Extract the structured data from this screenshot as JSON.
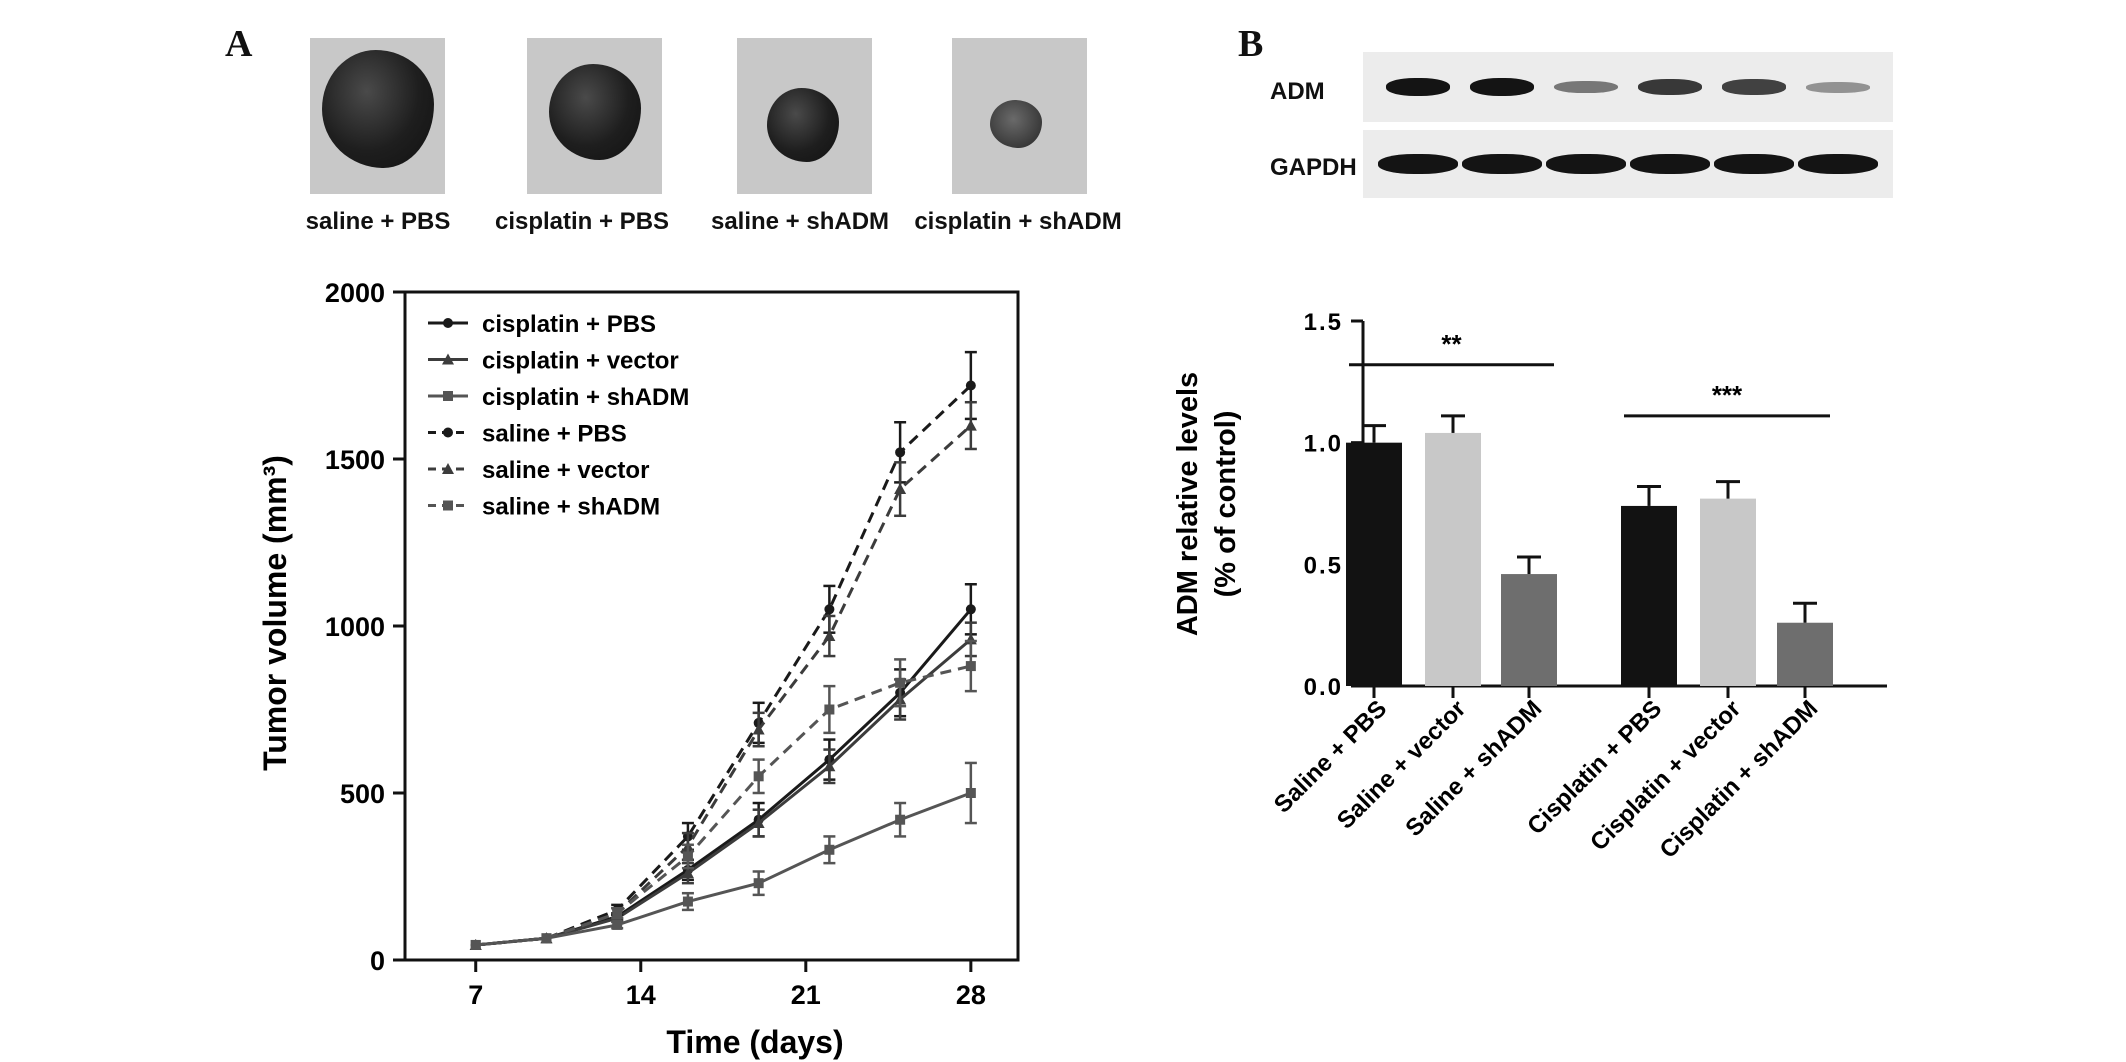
{
  "panels": {
    "a": "A",
    "b": "B"
  },
  "tumor_labels": [
    "saline + PBS",
    "cisplatin + PBS",
    "saline + shADM",
    "cisplatin + shADM"
  ],
  "blot": {
    "rows": [
      "ADM",
      "GAPDH"
    ],
    "adm_band_intensity": [
      1.0,
      1.0,
      0.45,
      0.8,
      0.75,
      0.3
    ]
  },
  "chart_data": [
    {
      "type": "line",
      "title": "",
      "xlabel": "Time (days)",
      "ylabel": "Tumor volume (mm³)",
      "xlim": [
        4,
        30
      ],
      "ylim": [
        0,
        2000
      ],
      "xticks": [
        7,
        14,
        21,
        28
      ],
      "yticks": [
        0,
        500,
        1000,
        1500,
        2000
      ],
      "legend_position": "top-left",
      "x": [
        7,
        10,
        13,
        16,
        19,
        22,
        25,
        28
      ],
      "series": [
        {
          "name": "cisplatin + PBS",
          "style": "solid",
          "marker": "circle",
          "color": "#1a1a1a",
          "values": [
            45,
            65,
            130,
            270,
            420,
            600,
            800,
            1050
          ],
          "errors": [
            0,
            0,
            10,
            30,
            50,
            60,
            70,
            75
          ]
        },
        {
          "name": "cisplatin + vector",
          "style": "solid",
          "marker": "triangle",
          "color": "#3c3c3c",
          "values": [
            45,
            65,
            125,
            260,
            410,
            580,
            780,
            960
          ],
          "errors": [
            0,
            0,
            10,
            30,
            40,
            50,
            60,
            50
          ]
        },
        {
          "name": "cisplatin + shADM",
          "style": "solid",
          "marker": "square",
          "color": "#555555",
          "values": [
            45,
            65,
            105,
            175,
            230,
            330,
            420,
            500
          ],
          "errors": [
            0,
            0,
            10,
            25,
            35,
            40,
            50,
            90
          ]
        },
        {
          "name": "saline + PBS",
          "style": "dashed",
          "marker": "circle",
          "color": "#1a1a1a",
          "values": [
            45,
            65,
            150,
            370,
            710,
            1050,
            1520,
            1720
          ],
          "errors": [
            0,
            0,
            15,
            40,
            60,
            70,
            90,
            100
          ]
        },
        {
          "name": "saline + vector",
          "style": "dashed",
          "marker": "triangle",
          "color": "#3c3c3c",
          "values": [
            45,
            65,
            140,
            340,
            690,
            970,
            1410,
            1600
          ],
          "errors": [
            0,
            0,
            15,
            40,
            50,
            60,
            80,
            70
          ]
        },
        {
          "name": "saline + shADM",
          "style": "dashed",
          "marker": "square",
          "color": "#555555",
          "values": [
            45,
            65,
            140,
            310,
            550,
            750,
            830,
            880
          ],
          "errors": [
            0,
            0,
            15,
            35,
            50,
            70,
            70,
            75
          ]
        }
      ]
    },
    {
      "type": "bar",
      "title": "",
      "ylabel": "ADM relative levels (% of control)",
      "ylabel_lines": [
        "ADM relative levels",
        "(% of control)"
      ],
      "ylim": [
        0,
        1.5
      ],
      "yticks": [
        0.0,
        0.5,
        1.0,
        1.5
      ],
      "ytick_labels": [
        "0.0",
        "0.5",
        "1.0",
        "1.5"
      ],
      "categories": [
        "Saline + PBS",
        "Saline + vector",
        "Saline + shADM",
        "Cisplatin + PBS",
        "Cisplatin + vector",
        "Cisplatin + shADM"
      ],
      "values": [
        1.0,
        1.04,
        0.46,
        0.74,
        0.77,
        0.26
      ],
      "errors": [
        0.07,
        0.07,
        0.07,
        0.08,
        0.07,
        0.08
      ],
      "colors": [
        "#121212",
        "#c8c8c8",
        "#6e6e6e",
        "#121212",
        "#c8c8c8",
        "#6e6e6e"
      ],
      "significance": [
        {
          "label": "**",
          "from": 0,
          "to": 2,
          "level": 1.32
        },
        {
          "label": "***",
          "from": 3,
          "to": 5,
          "level": 1.11
        }
      ]
    }
  ]
}
